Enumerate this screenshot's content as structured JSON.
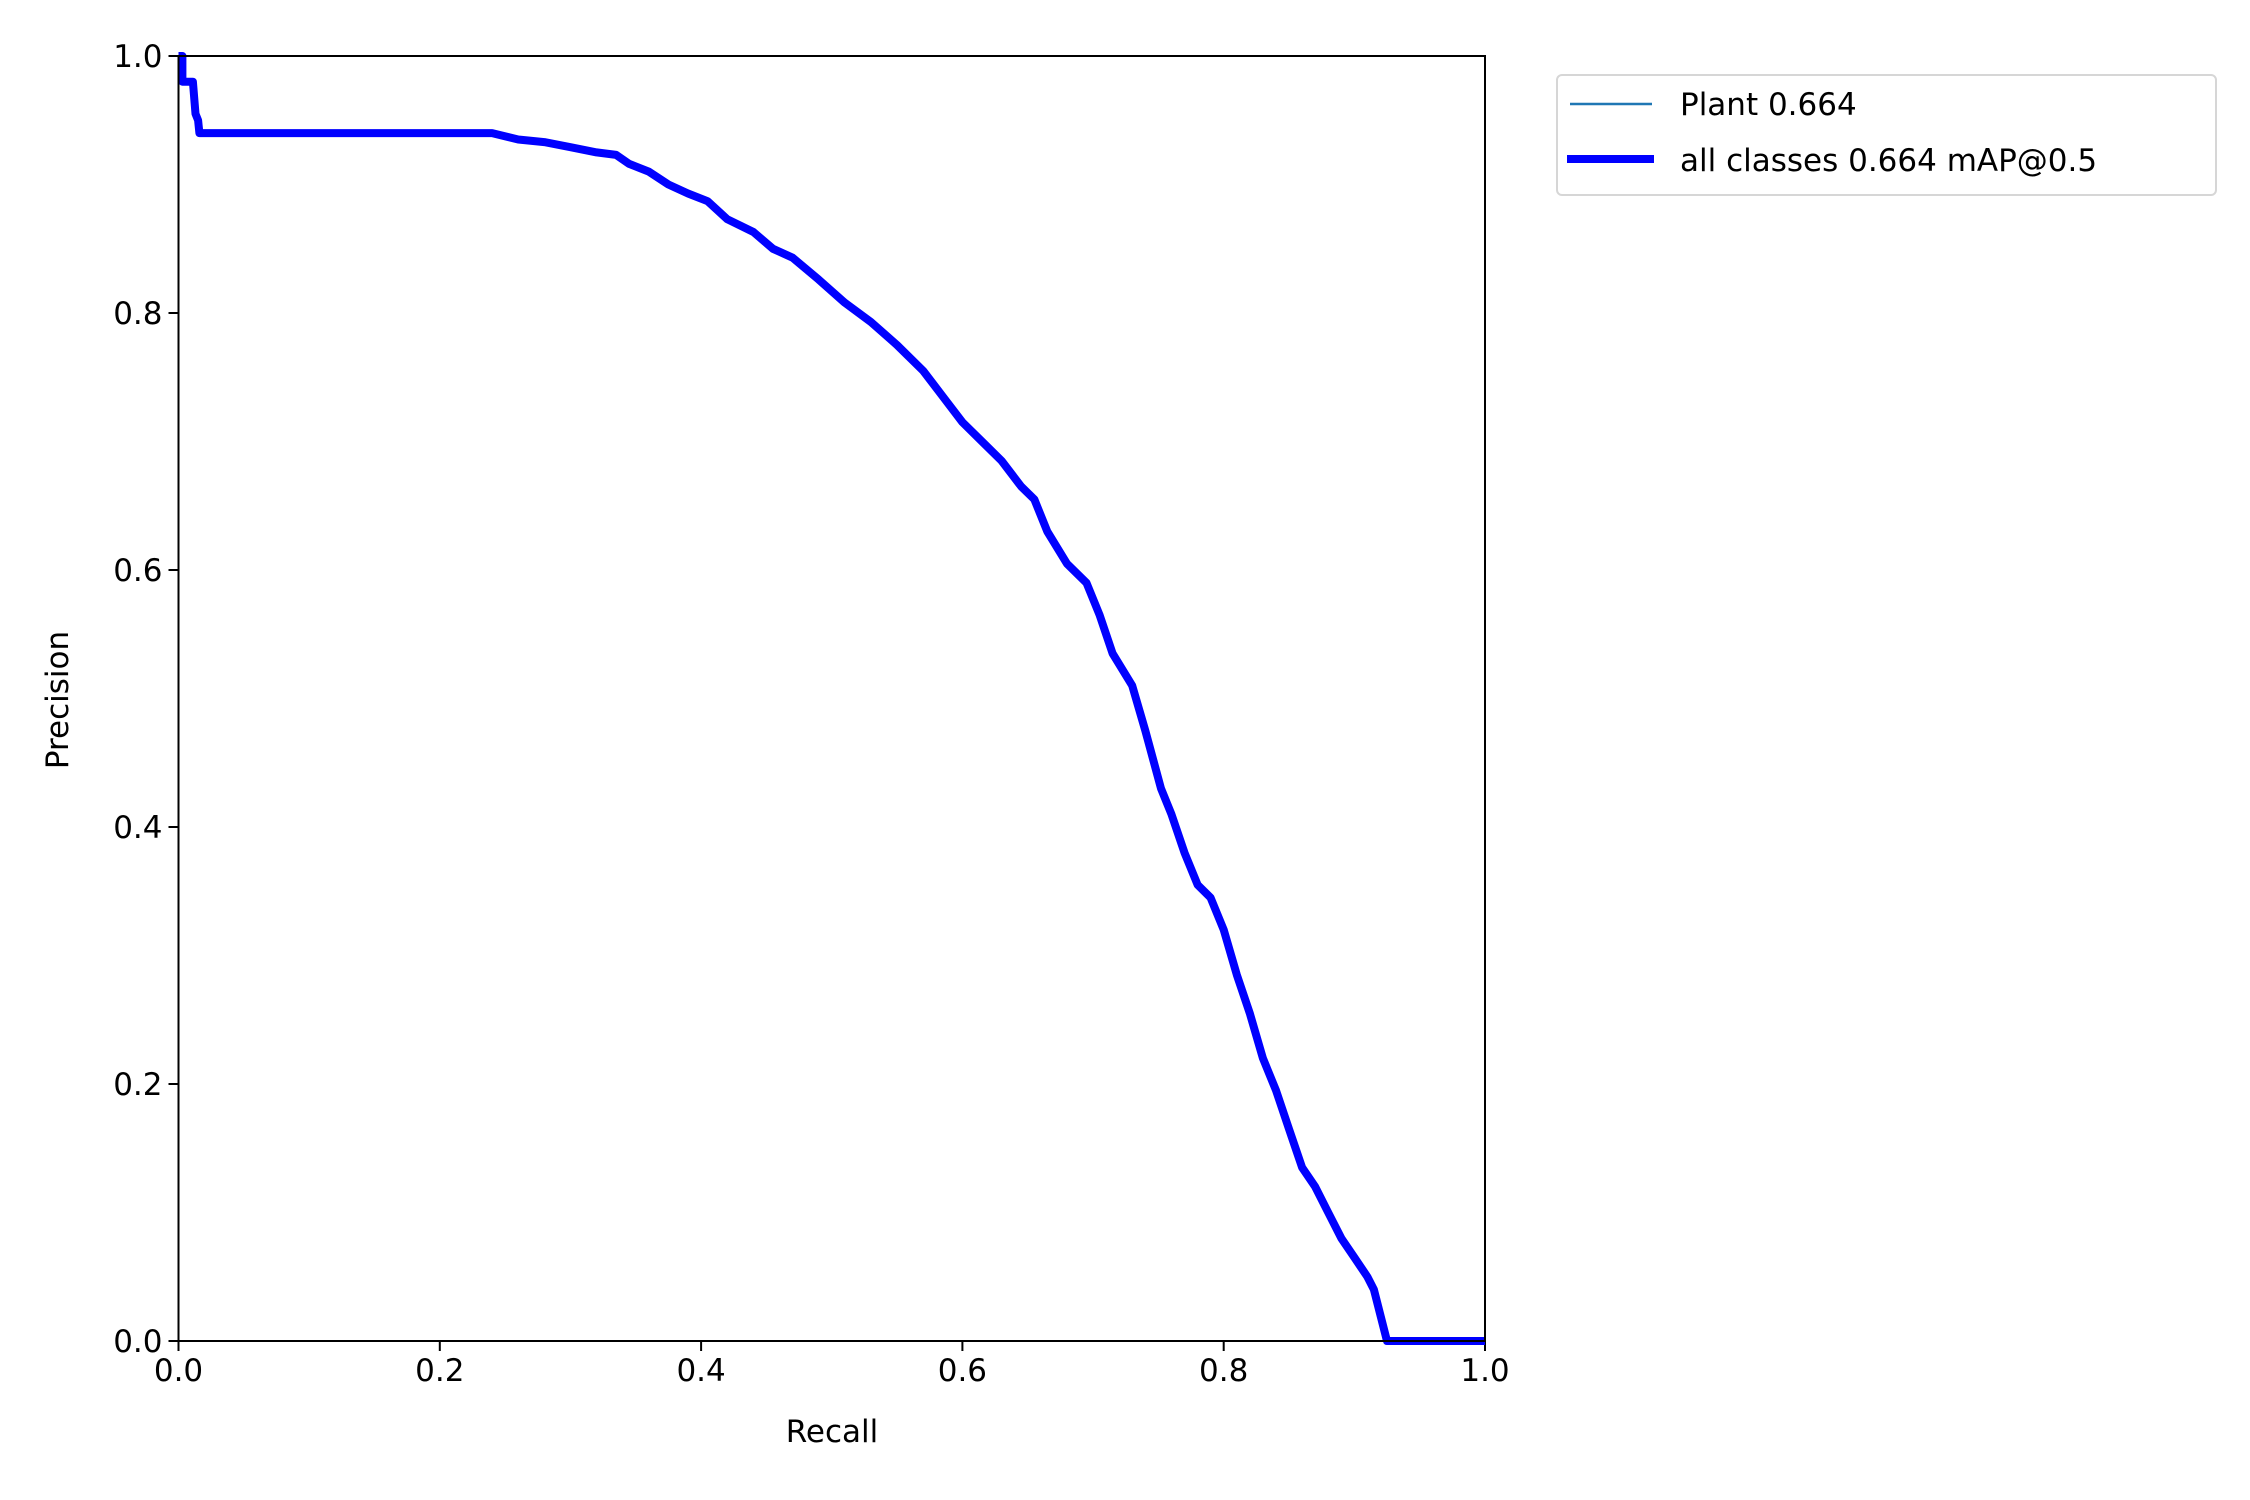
{
  "chart_data": {
    "type": "line",
    "xlabel": "Recall",
    "ylabel": "Precision",
    "xlim": [
      0,
      1
    ],
    "ylim": [
      0,
      1
    ],
    "grid": false,
    "legend_placement": "outside-top-right",
    "xticks": [
      "0.0",
      "0.2",
      "0.4",
      "0.6",
      "0.8",
      "1.0"
    ],
    "yticks": [
      "0.0",
      "0.2",
      "0.4",
      "0.6",
      "0.8",
      "1.0"
    ],
    "x": [
      0,
      0.003,
      0.003,
      0.011,
      0.013,
      0.015,
      0.016,
      0.1,
      0.24,
      0.26,
      0.28,
      0.3,
      0.32,
      0.335,
      0.345,
      0.36,
      0.375,
      0.39,
      0.405,
      0.42,
      0.44,
      0.455,
      0.47,
      0.49,
      0.51,
      0.53,
      0.55,
      0.57,
      0.585,
      0.6,
      0.615,
      0.63,
      0.645,
      0.655,
      0.665,
      0.68,
      0.695,
      0.705,
      0.715,
      0.73,
      0.74,
      0.752,
      0.76,
      0.77,
      0.78,
      0.79,
      0.8,
      0.81,
      0.82,
      0.83,
      0.84,
      0.85,
      0.86,
      0.87,
      0.88,
      0.89,
      0.9,
      0.91,
      0.915,
      0.925,
      1.0
    ],
    "series": [
      {
        "name": "Plant 0.664",
        "color": "#1f77b4",
        "values": [
          1.0,
          1.0,
          0.98,
          0.98,
          0.955,
          0.95,
          0.94,
          0.94,
          0.94,
          0.935,
          0.933,
          0.929,
          0.925,
          0.923,
          0.916,
          0.91,
          0.9,
          0.893,
          0.887,
          0.873,
          0.863,
          0.85,
          0.843,
          0.826,
          0.808,
          0.793,
          0.775,
          0.755,
          0.735,
          0.715,
          0.7,
          0.685,
          0.665,
          0.655,
          0.63,
          0.605,
          0.59,
          0.565,
          0.535,
          0.51,
          0.475,
          0.43,
          0.41,
          0.38,
          0.355,
          0.345,
          0.32,
          0.285,
          0.255,
          0.22,
          0.195,
          0.165,
          0.135,
          0.12,
          0.1,
          0.08,
          0.065,
          0.05,
          0.04,
          0.0,
          0.0
        ]
      },
      {
        "name": "all classes 0.664 mAP@0.5",
        "color": "#0000ff",
        "values": [
          1.0,
          1.0,
          0.98,
          0.98,
          0.955,
          0.95,
          0.94,
          0.94,
          0.94,
          0.935,
          0.933,
          0.929,
          0.925,
          0.923,
          0.916,
          0.91,
          0.9,
          0.893,
          0.887,
          0.873,
          0.863,
          0.85,
          0.843,
          0.826,
          0.808,
          0.793,
          0.775,
          0.755,
          0.735,
          0.715,
          0.7,
          0.685,
          0.665,
          0.655,
          0.63,
          0.605,
          0.59,
          0.565,
          0.535,
          0.51,
          0.475,
          0.43,
          0.41,
          0.38,
          0.355,
          0.345,
          0.32,
          0.285,
          0.255,
          0.22,
          0.195,
          0.165,
          0.135,
          0.12,
          0.1,
          0.08,
          0.065,
          0.05,
          0.04,
          0.0,
          0.0
        ]
      }
    ]
  }
}
